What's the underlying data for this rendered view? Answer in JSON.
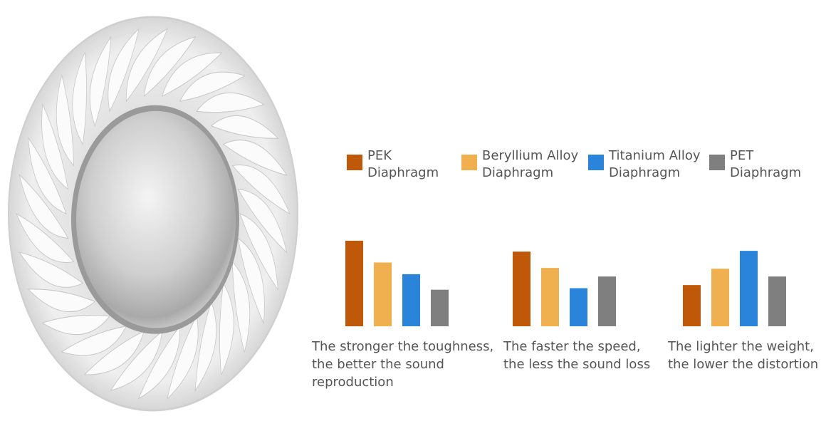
{
  "chart_data": {
    "type": "bar",
    "categories": [
      "The stronger the toughness, the better the sound reproduction",
      "The faster the speed, the less the sound loss",
      "The lighter the weight, the lower the distortion"
    ],
    "series": [
      {
        "name": "PEK Diaphragm",
        "color": "#c0580a",
        "values": [
          110,
          96,
          53
        ]
      },
      {
        "name": "Beryllium Alloy Diaphragm",
        "color": "#f0b050",
        "values": [
          82,
          75,
          74
        ]
      },
      {
        "name": "Titanium Alloy Diaphragm",
        "color": "#2a84da",
        "values": [
          67,
          49,
          97
        ]
      },
      {
        "name": "PET Diaphragm",
        "color": "#7f7f7f",
        "values": [
          47,
          64,
          64
        ]
      }
    ],
    "ylim": [
      0,
      120
    ]
  }
}
